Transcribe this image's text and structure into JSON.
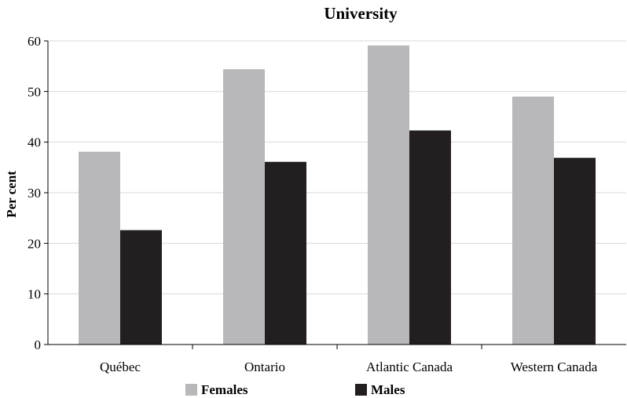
{
  "chart_data": {
    "type": "bar",
    "title": "University",
    "xlabel": "",
    "ylabel": "Per cent",
    "categories": [
      "Québec",
      "Ontario",
      "Atlantic Canada",
      "Western Canada"
    ],
    "series": [
      {
        "name": "Females",
        "color": "#b8b8ba",
        "values": [
          38.1,
          54.4,
          59.1,
          49.0
        ]
      },
      {
        "name": "Males",
        "color": "#231f20",
        "values": [
          22.6,
          36.1,
          42.3,
          36.9
        ]
      }
    ],
    "ylim": [
      0,
      60
    ],
    "yticks": [
      0,
      10,
      20,
      30,
      40,
      50,
      60
    ],
    "grid": true,
    "legend": "bottom"
  }
}
